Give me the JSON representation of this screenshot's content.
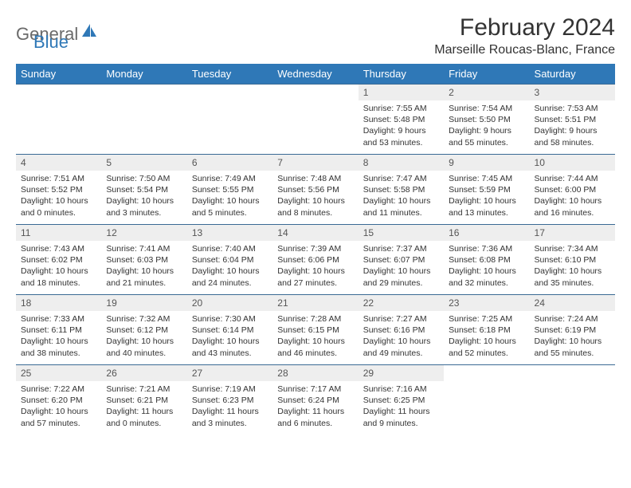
{
  "logo": {
    "part1": "General",
    "part2": "Blue"
  },
  "title": "February 2024",
  "location": "Marseille Roucas-Blanc, France",
  "colors": {
    "header_bg": "#2f78b7",
    "header_text": "#ffffff",
    "daynum_bg": "#eeeeee",
    "border": "#3a6a94",
    "logo_gray": "#6a6a6a",
    "logo_blue": "#2f78b7"
  },
  "weekdays": [
    "Sunday",
    "Monday",
    "Tuesday",
    "Wednesday",
    "Thursday",
    "Friday",
    "Saturday"
  ],
  "first_weekday_index": 4,
  "days_in_month": 29,
  "days": {
    "1": {
      "sunrise": "7:55 AM",
      "sunset": "5:48 PM",
      "daylight": "9 hours and 53 minutes."
    },
    "2": {
      "sunrise": "7:54 AM",
      "sunset": "5:50 PM",
      "daylight": "9 hours and 55 minutes."
    },
    "3": {
      "sunrise": "7:53 AM",
      "sunset": "5:51 PM",
      "daylight": "9 hours and 58 minutes."
    },
    "4": {
      "sunrise": "7:51 AM",
      "sunset": "5:52 PM",
      "daylight": "10 hours and 0 minutes."
    },
    "5": {
      "sunrise": "7:50 AM",
      "sunset": "5:54 PM",
      "daylight": "10 hours and 3 minutes."
    },
    "6": {
      "sunrise": "7:49 AM",
      "sunset": "5:55 PM",
      "daylight": "10 hours and 5 minutes."
    },
    "7": {
      "sunrise": "7:48 AM",
      "sunset": "5:56 PM",
      "daylight": "10 hours and 8 minutes."
    },
    "8": {
      "sunrise": "7:47 AM",
      "sunset": "5:58 PM",
      "daylight": "10 hours and 11 minutes."
    },
    "9": {
      "sunrise": "7:45 AM",
      "sunset": "5:59 PM",
      "daylight": "10 hours and 13 minutes."
    },
    "10": {
      "sunrise": "7:44 AM",
      "sunset": "6:00 PM",
      "daylight": "10 hours and 16 minutes."
    },
    "11": {
      "sunrise": "7:43 AM",
      "sunset": "6:02 PM",
      "daylight": "10 hours and 18 minutes."
    },
    "12": {
      "sunrise": "7:41 AM",
      "sunset": "6:03 PM",
      "daylight": "10 hours and 21 minutes."
    },
    "13": {
      "sunrise": "7:40 AM",
      "sunset": "6:04 PM",
      "daylight": "10 hours and 24 minutes."
    },
    "14": {
      "sunrise": "7:39 AM",
      "sunset": "6:06 PM",
      "daylight": "10 hours and 27 minutes."
    },
    "15": {
      "sunrise": "7:37 AM",
      "sunset": "6:07 PM",
      "daylight": "10 hours and 29 minutes."
    },
    "16": {
      "sunrise": "7:36 AM",
      "sunset": "6:08 PM",
      "daylight": "10 hours and 32 minutes."
    },
    "17": {
      "sunrise": "7:34 AM",
      "sunset": "6:10 PM",
      "daylight": "10 hours and 35 minutes."
    },
    "18": {
      "sunrise": "7:33 AM",
      "sunset": "6:11 PM",
      "daylight": "10 hours and 38 minutes."
    },
    "19": {
      "sunrise": "7:32 AM",
      "sunset": "6:12 PM",
      "daylight": "10 hours and 40 minutes."
    },
    "20": {
      "sunrise": "7:30 AM",
      "sunset": "6:14 PM",
      "daylight": "10 hours and 43 minutes."
    },
    "21": {
      "sunrise": "7:28 AM",
      "sunset": "6:15 PM",
      "daylight": "10 hours and 46 minutes."
    },
    "22": {
      "sunrise": "7:27 AM",
      "sunset": "6:16 PM",
      "daylight": "10 hours and 49 minutes."
    },
    "23": {
      "sunrise": "7:25 AM",
      "sunset": "6:18 PM",
      "daylight": "10 hours and 52 minutes."
    },
    "24": {
      "sunrise": "7:24 AM",
      "sunset": "6:19 PM",
      "daylight": "10 hours and 55 minutes."
    },
    "25": {
      "sunrise": "7:22 AM",
      "sunset": "6:20 PM",
      "daylight": "10 hours and 57 minutes."
    },
    "26": {
      "sunrise": "7:21 AM",
      "sunset": "6:21 PM",
      "daylight": "11 hours and 0 minutes."
    },
    "27": {
      "sunrise": "7:19 AM",
      "sunset": "6:23 PM",
      "daylight": "11 hours and 3 minutes."
    },
    "28": {
      "sunrise": "7:17 AM",
      "sunset": "6:24 PM",
      "daylight": "11 hours and 6 minutes."
    },
    "29": {
      "sunrise": "7:16 AM",
      "sunset": "6:25 PM",
      "daylight": "11 hours and 9 minutes."
    }
  },
  "labels": {
    "sunrise": "Sunrise:",
    "sunset": "Sunset:",
    "daylight": "Daylight:"
  }
}
